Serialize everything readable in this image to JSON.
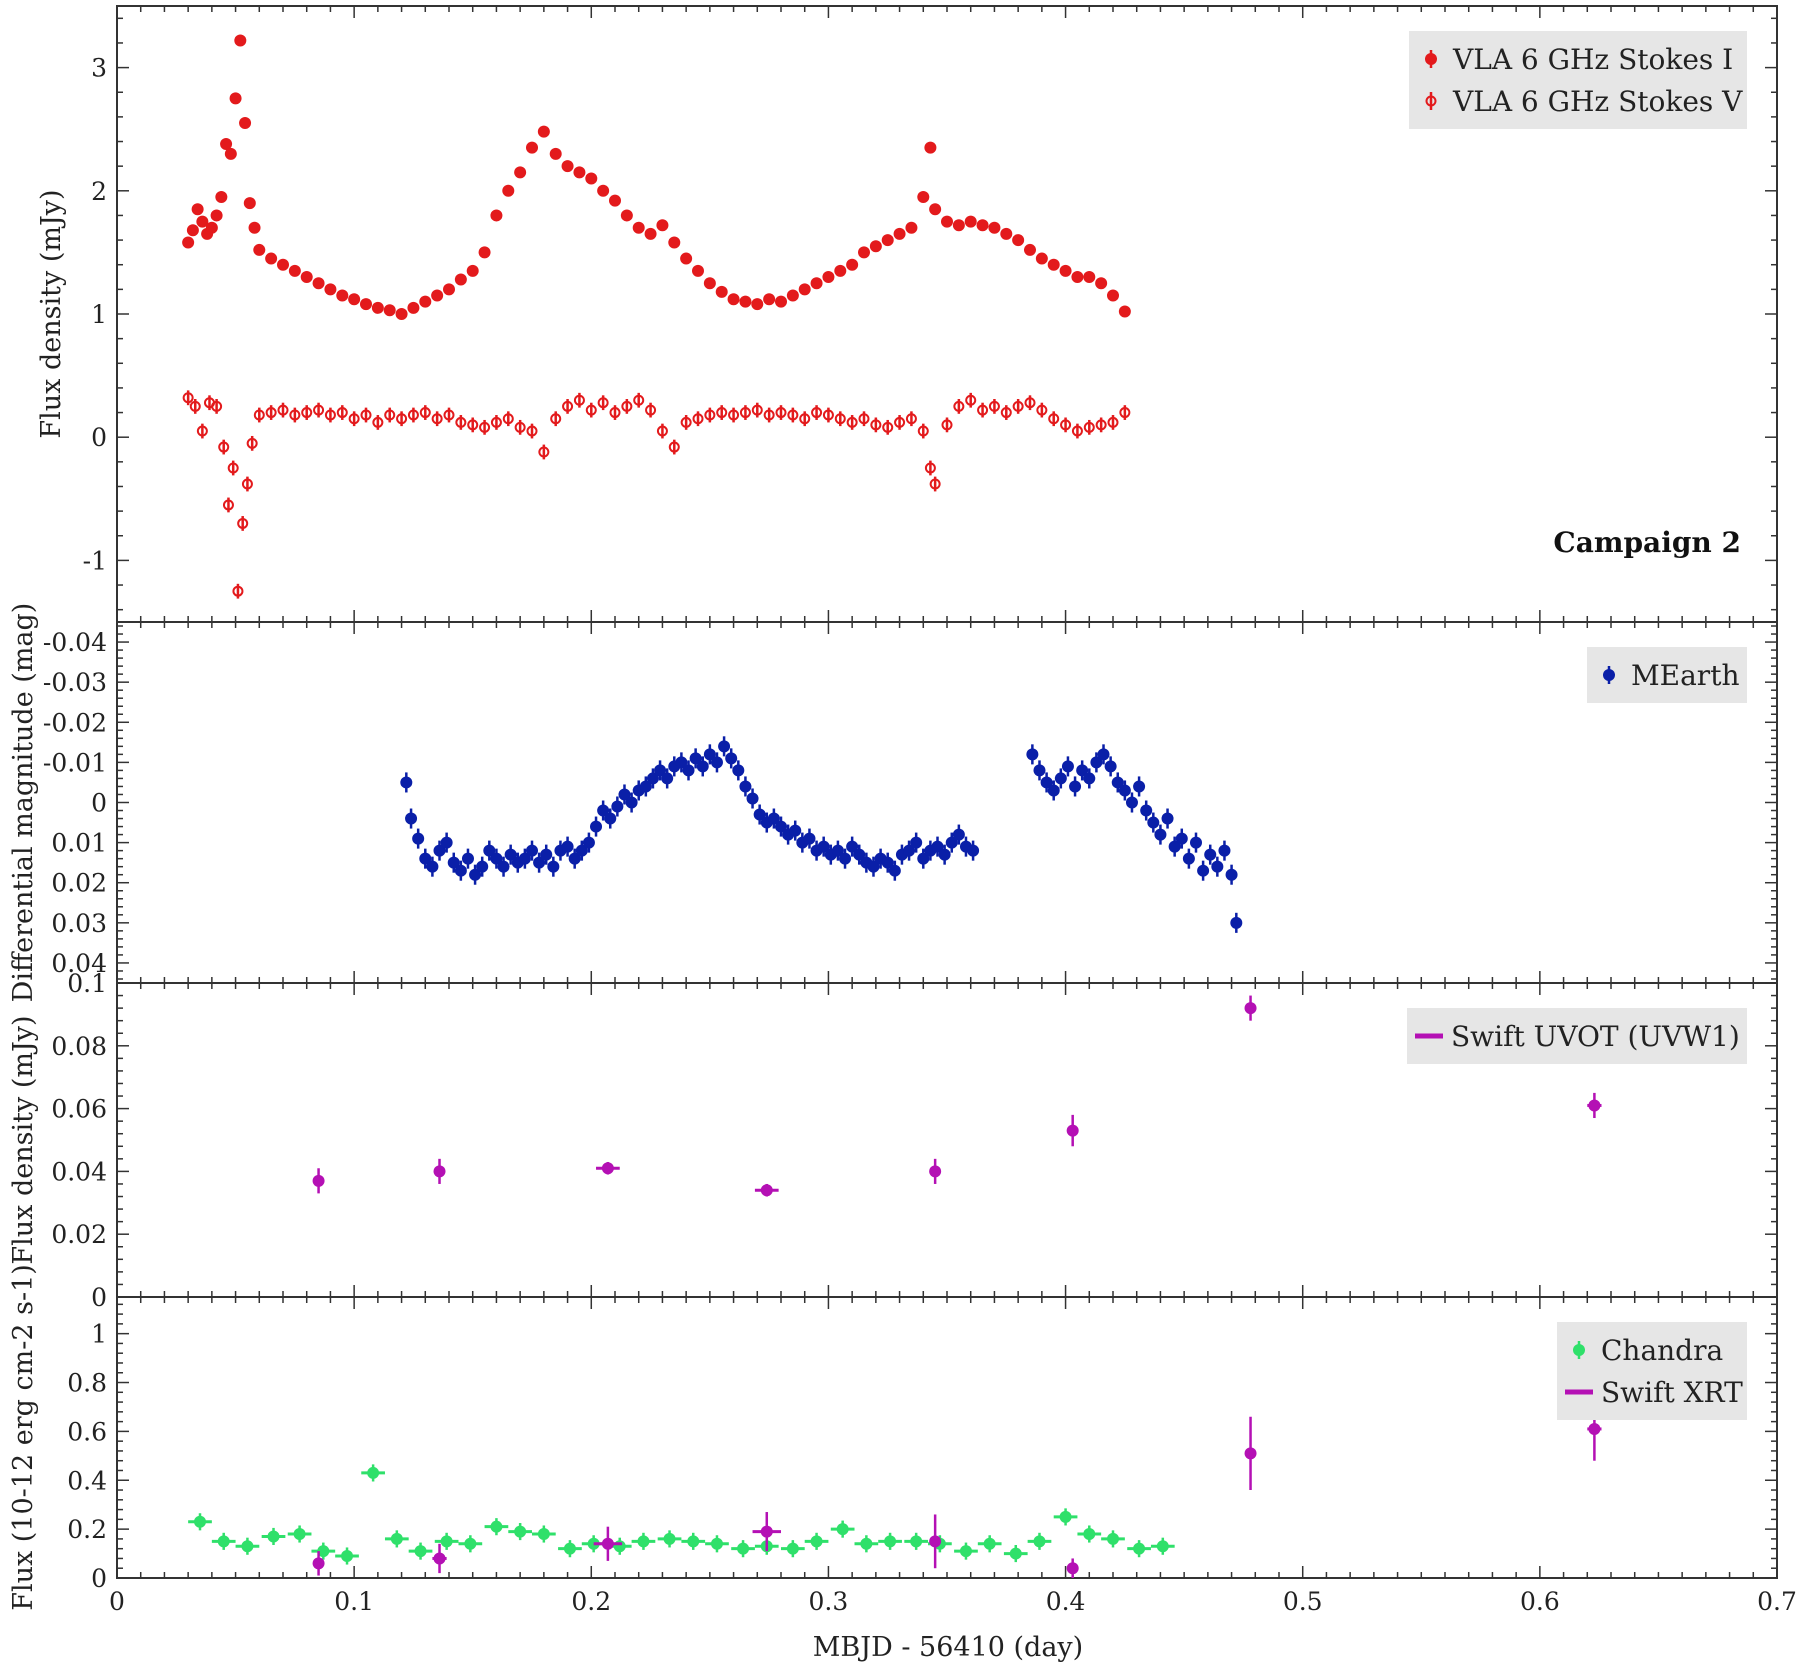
{
  "chart_data": [
    {
      "panel": "radio",
      "type": "scatter",
      "ylabel": "Flux density (mJy)",
      "ylim": [
        -1.5,
        3.5
      ],
      "yticks": [
        -1,
        0,
        1,
        2,
        3
      ],
      "annotation": "Campaign 2",
      "legend_position": "top-right",
      "series": [
        {
          "name": "VLA 6 GHz Stokes I",
          "color": "#e31a1c",
          "marker": "filled-circle",
          "x": [
            0.03,
            0.032,
            0.034,
            0.036,
            0.038,
            0.04,
            0.042,
            0.044,
            0.046,
            0.048,
            0.05,
            0.052,
            0.054,
            0.056,
            0.058,
            0.06,
            0.065,
            0.07,
            0.075,
            0.08,
            0.085,
            0.09,
            0.095,
            0.1,
            0.105,
            0.11,
            0.115,
            0.12,
            0.125,
            0.13,
            0.135,
            0.14,
            0.145,
            0.15,
            0.155,
            0.16,
            0.165,
            0.17,
            0.175,
            0.18,
            0.185,
            0.19,
            0.195,
            0.2,
            0.205,
            0.21,
            0.215,
            0.22,
            0.225,
            0.23,
            0.235,
            0.24,
            0.245,
            0.25,
            0.255,
            0.26,
            0.265,
            0.27,
            0.275,
            0.28,
            0.285,
            0.29,
            0.295,
            0.3,
            0.305,
            0.31,
            0.315,
            0.32,
            0.325,
            0.33,
            0.335,
            0.34,
            0.343,
            0.345,
            0.35,
            0.355,
            0.36,
            0.365,
            0.37,
            0.375,
            0.38,
            0.385,
            0.39,
            0.395,
            0.4,
            0.405,
            0.41,
            0.415,
            0.42,
            0.425
          ],
          "y": [
            1.58,
            1.68,
            1.85,
            1.75,
            1.65,
            1.7,
            1.8,
            1.95,
            2.38,
            2.3,
            2.75,
            3.22,
            2.55,
            1.9,
            1.7,
            1.52,
            1.45,
            1.4,
            1.35,
            1.3,
            1.25,
            1.2,
            1.15,
            1.12,
            1.08,
            1.05,
            1.03,
            1.0,
            1.05,
            1.1,
            1.15,
            1.2,
            1.28,
            1.35,
            1.5,
            1.8,
            2.0,
            2.15,
            2.35,
            2.48,
            2.3,
            2.2,
            2.15,
            2.1,
            2.0,
            1.92,
            1.8,
            1.7,
            1.65,
            1.72,
            1.58,
            1.45,
            1.35,
            1.25,
            1.18,
            1.12,
            1.1,
            1.08,
            1.12,
            1.1,
            1.15,
            1.2,
            1.25,
            1.3,
            1.35,
            1.4,
            1.5,
            1.55,
            1.6,
            1.65,
            1.7,
            1.95,
            2.35,
            1.85,
            1.75,
            1.72,
            1.75,
            1.72,
            1.7,
            1.65,
            1.6,
            1.52,
            1.45,
            1.4,
            1.35,
            1.3,
            1.3,
            1.25,
            1.15,
            1.02
          ],
          "yerr": 0.04
        },
        {
          "name": "VLA 6 GHz Stokes V",
          "color": "#e31a1c",
          "marker": "open-circle",
          "x": [
            0.03,
            0.033,
            0.036,
            0.039,
            0.042,
            0.045,
            0.047,
            0.049,
            0.051,
            0.053,
            0.055,
            0.057,
            0.06,
            0.065,
            0.07,
            0.075,
            0.08,
            0.085,
            0.09,
            0.095,
            0.1,
            0.105,
            0.11,
            0.115,
            0.12,
            0.125,
            0.13,
            0.135,
            0.14,
            0.145,
            0.15,
            0.155,
            0.16,
            0.165,
            0.17,
            0.175,
            0.18,
            0.185,
            0.19,
            0.195,
            0.2,
            0.205,
            0.21,
            0.215,
            0.22,
            0.225,
            0.23,
            0.235,
            0.24,
            0.245,
            0.25,
            0.255,
            0.26,
            0.265,
            0.27,
            0.275,
            0.28,
            0.285,
            0.29,
            0.295,
            0.3,
            0.305,
            0.31,
            0.315,
            0.32,
            0.325,
            0.33,
            0.335,
            0.34,
            0.343,
            0.345,
            0.35,
            0.355,
            0.36,
            0.365,
            0.37,
            0.375,
            0.38,
            0.385,
            0.39,
            0.395,
            0.4,
            0.405,
            0.41,
            0.415,
            0.42,
            0.425
          ],
          "y": [
            0.32,
            0.25,
            0.05,
            0.28,
            0.25,
            -0.08,
            -0.55,
            -0.25,
            -1.25,
            -0.7,
            -0.38,
            -0.05,
            0.18,
            0.2,
            0.22,
            0.18,
            0.2,
            0.22,
            0.18,
            0.2,
            0.15,
            0.18,
            0.12,
            0.18,
            0.15,
            0.18,
            0.2,
            0.15,
            0.18,
            0.12,
            0.1,
            0.08,
            0.12,
            0.15,
            0.08,
            0.05,
            -0.12,
            0.15,
            0.25,
            0.3,
            0.22,
            0.28,
            0.2,
            0.25,
            0.3,
            0.22,
            0.05,
            -0.08,
            0.12,
            0.15,
            0.18,
            0.2,
            0.18,
            0.2,
            0.22,
            0.18,
            0.2,
            0.18,
            0.15,
            0.2,
            0.18,
            0.15,
            0.12,
            0.15,
            0.1,
            0.08,
            0.12,
            0.15,
            0.05,
            -0.25,
            -0.38,
            0.1,
            0.25,
            0.3,
            0.22,
            0.25,
            0.2,
            0.25,
            0.28,
            0.22,
            0.15,
            0.1,
            0.05,
            0.08,
            0.1,
            0.12,
            0.2
          ],
          "yerr": 0.06
        }
      ]
    },
    {
      "panel": "optical",
      "type": "scatter",
      "ylabel": "Differential magnitude (mag)",
      "ylim": [
        0.045,
        -0.045
      ],
      "yticks": [
        -0.04,
        -0.03,
        -0.02,
        -0.01,
        0,
        0.01,
        0.02,
        0.03,
        0.04
      ],
      "ytick_labels": [
        "-0.04",
        "-0.03",
        "-0.02",
        "-0.01",
        "0",
        "0.01",
        "0.02",
        "0.03",
        "0.04"
      ],
      "legend_position": "top-right",
      "series": [
        {
          "name": "MEarth",
          "color": "#0a1fa8",
          "marker": "filled-circle",
          "x": [
            0.122,
            0.124,
            0.127,
            0.13,
            0.133,
            0.136,
            0.139,
            0.142,
            0.145,
            0.148,
            0.151,
            0.154,
            0.157,
            0.16,
            0.163,
            0.166,
            0.169,
            0.172,
            0.175,
            0.178,
            0.181,
            0.184,
            0.187,
            0.19,
            0.193,
            0.196,
            0.199,
            0.202,
            0.205,
            0.208,
            0.211,
            0.214,
            0.217,
            0.22,
            0.223,
            0.226,
            0.229,
            0.232,
            0.235,
            0.238,
            0.241,
            0.244,
            0.247,
            0.25,
            0.253,
            0.256,
            0.259,
            0.262,
            0.265,
            0.268,
            0.271,
            0.274,
            0.277,
            0.28,
            0.283,
            0.286,
            0.289,
            0.292,
            0.295,
            0.298,
            0.301,
            0.304,
            0.307,
            0.31,
            0.313,
            0.316,
            0.319,
            0.322,
            0.325,
            0.328,
            0.331,
            0.334,
            0.337,
            0.34,
            0.343,
            0.346,
            0.349,
            0.352,
            0.355,
            0.358,
            0.361,
            0.386,
            0.389,
            0.392,
            0.395,
            0.398,
            0.401,
            0.404,
            0.407,
            0.41,
            0.413,
            0.416,
            0.419,
            0.422,
            0.425,
            0.428,
            0.431,
            0.434,
            0.437,
            0.44,
            0.443,
            0.446,
            0.449,
            0.452,
            0.455,
            0.458,
            0.461,
            0.464,
            0.467,
            0.47,
            0.472
          ],
          "y": [
            -0.005,
            0.004,
            0.009,
            0.014,
            0.016,
            0.012,
            0.01,
            0.015,
            0.017,
            0.014,
            0.018,
            0.016,
            0.012,
            0.014,
            0.016,
            0.013,
            0.015,
            0.014,
            0.012,
            0.015,
            0.013,
            0.016,
            0.012,
            0.011,
            0.014,
            0.012,
            0.01,
            0.006,
            0.002,
            0.004,
            0.001,
            -0.002,
            0.0,
            -0.003,
            -0.004,
            -0.006,
            -0.008,
            -0.006,
            -0.009,
            -0.01,
            -0.008,
            -0.011,
            -0.009,
            -0.012,
            -0.01,
            -0.014,
            -0.011,
            -0.008,
            -0.004,
            -0.001,
            0.003,
            0.005,
            0.004,
            0.006,
            0.008,
            0.007,
            0.01,
            0.009,
            0.012,
            0.011,
            0.013,
            0.012,
            0.014,
            0.011,
            0.013,
            0.015,
            0.016,
            0.014,
            0.015,
            0.017,
            0.013,
            0.012,
            0.01,
            0.014,
            0.012,
            0.011,
            0.013,
            0.01,
            0.008,
            0.011,
            0.012,
            -0.012,
            -0.008,
            -0.005,
            -0.003,
            -0.006,
            -0.009,
            -0.004,
            -0.008,
            -0.006,
            -0.01,
            -0.012,
            -0.009,
            -0.005,
            -0.003,
            0.0,
            -0.004,
            0.002,
            0.005,
            0.008,
            0.004,
            0.011,
            0.009,
            0.014,
            0.01,
            0.017,
            0.013,
            0.016,
            0.012,
            0.018,
            0.03
          ],
          "yerr": 0.0025
        }
      ]
    },
    {
      "panel": "uv",
      "type": "scatter",
      "ylabel": "Flux density (mJy)",
      "ylim": [
        0,
        0.1
      ],
      "yticks": [
        0,
        0.02,
        0.04,
        0.06,
        0.08,
        0.1
      ],
      "ytick_labels": [
        "0",
        "0.02",
        "0.04",
        "0.06",
        "0.08",
        "0.1"
      ],
      "legend_position": "top-right",
      "series": [
        {
          "name": "Swift UVOT (UVW1)",
          "color": "#b410b4",
          "marker": "filled-circle",
          "x": [
            0.085,
            0.136,
            0.207,
            0.274,
            0.345,
            0.403,
            0.478,
            0.623
          ],
          "y": [
            0.037,
            0.04,
            0.041,
            0.034,
            0.04,
            0.053,
            0.092,
            0.061
          ],
          "yerr": [
            0.004,
            0.004,
            0.002,
            0.002,
            0.004,
            0.005,
            0.004,
            0.004
          ],
          "xerr": [
            0.002,
            0.002,
            0.005,
            0.005,
            0.002,
            0.001,
            0.002,
            0.003
          ]
        }
      ]
    },
    {
      "panel": "xray",
      "type": "scatter",
      "ylabel": "Flux (10-12 erg cm-2 s-1)",
      "xlabel": "MBJD - 56410 (day)",
      "ylim": [
        0,
        1.15
      ],
      "yticks": [
        0,
        0.2,
        0.4,
        0.6,
        0.8,
        1
      ],
      "ytick_labels": [
        "0",
        "0.2",
        "0.4",
        "0.6",
        "0.8",
        "1"
      ],
      "legend_position": "top-right",
      "series": [
        {
          "name": "Chandra",
          "color": "#2fe06a",
          "marker": "filled-circle",
          "x": [
            0.035,
            0.045,
            0.055,
            0.066,
            0.077,
            0.087,
            0.097,
            0.108,
            0.118,
            0.128,
            0.139,
            0.149,
            0.16,
            0.17,
            0.18,
            0.191,
            0.201,
            0.212,
            0.222,
            0.233,
            0.243,
            0.253,
            0.264,
            0.274,
            0.285,
            0.295,
            0.306,
            0.316,
            0.326,
            0.337,
            0.347,
            0.358,
            0.368,
            0.379,
            0.389,
            0.4,
            0.41,
            0.42,
            0.431,
            0.441
          ],
          "y": [
            0.23,
            0.15,
            0.13,
            0.17,
            0.18,
            0.11,
            0.09,
            0.43,
            0.16,
            0.11,
            0.15,
            0.14,
            0.21,
            0.19,
            0.18,
            0.12,
            0.14,
            0.13,
            0.15,
            0.16,
            0.15,
            0.14,
            0.12,
            0.13,
            0.12,
            0.15,
            0.2,
            0.14,
            0.15,
            0.15,
            0.14,
            0.11,
            0.14,
            0.1,
            0.15,
            0.25,
            0.18,
            0.16,
            0.12,
            0.13
          ],
          "yerr": 0.035,
          "xerr": 0.005
        },
        {
          "name": "Swift XRT",
          "color": "#b410b4",
          "marker": "filled-circle",
          "x": [
            0.085,
            0.136,
            0.207,
            0.274,
            0.345,
            0.403,
            0.478,
            0.623
          ],
          "y": [
            0.06,
            0.08,
            0.14,
            0.19,
            0.15,
            0.04,
            0.51,
            0.61
          ],
          "yerr": [
            0.05,
            0.06,
            0.07,
            0.08,
            0.11,
            0.04,
            0.15,
            0.13
          ],
          "xerr": [
            0.002,
            0.003,
            0.006,
            0.006,
            0.002,
            0.001,
            0.002,
            0.003
          ]
        }
      ]
    }
  ],
  "xaxis": {
    "xlim": [
      0,
      0.7
    ],
    "xticks": [
      0,
      0.1,
      0.2,
      0.3,
      0.4,
      0.5,
      0.6,
      0.7
    ],
    "xtick_labels": [
      "0",
      "0.1",
      "0.2",
      "0.3",
      "0.4",
      "0.5",
      "0.6",
      "0.7"
    ]
  }
}
